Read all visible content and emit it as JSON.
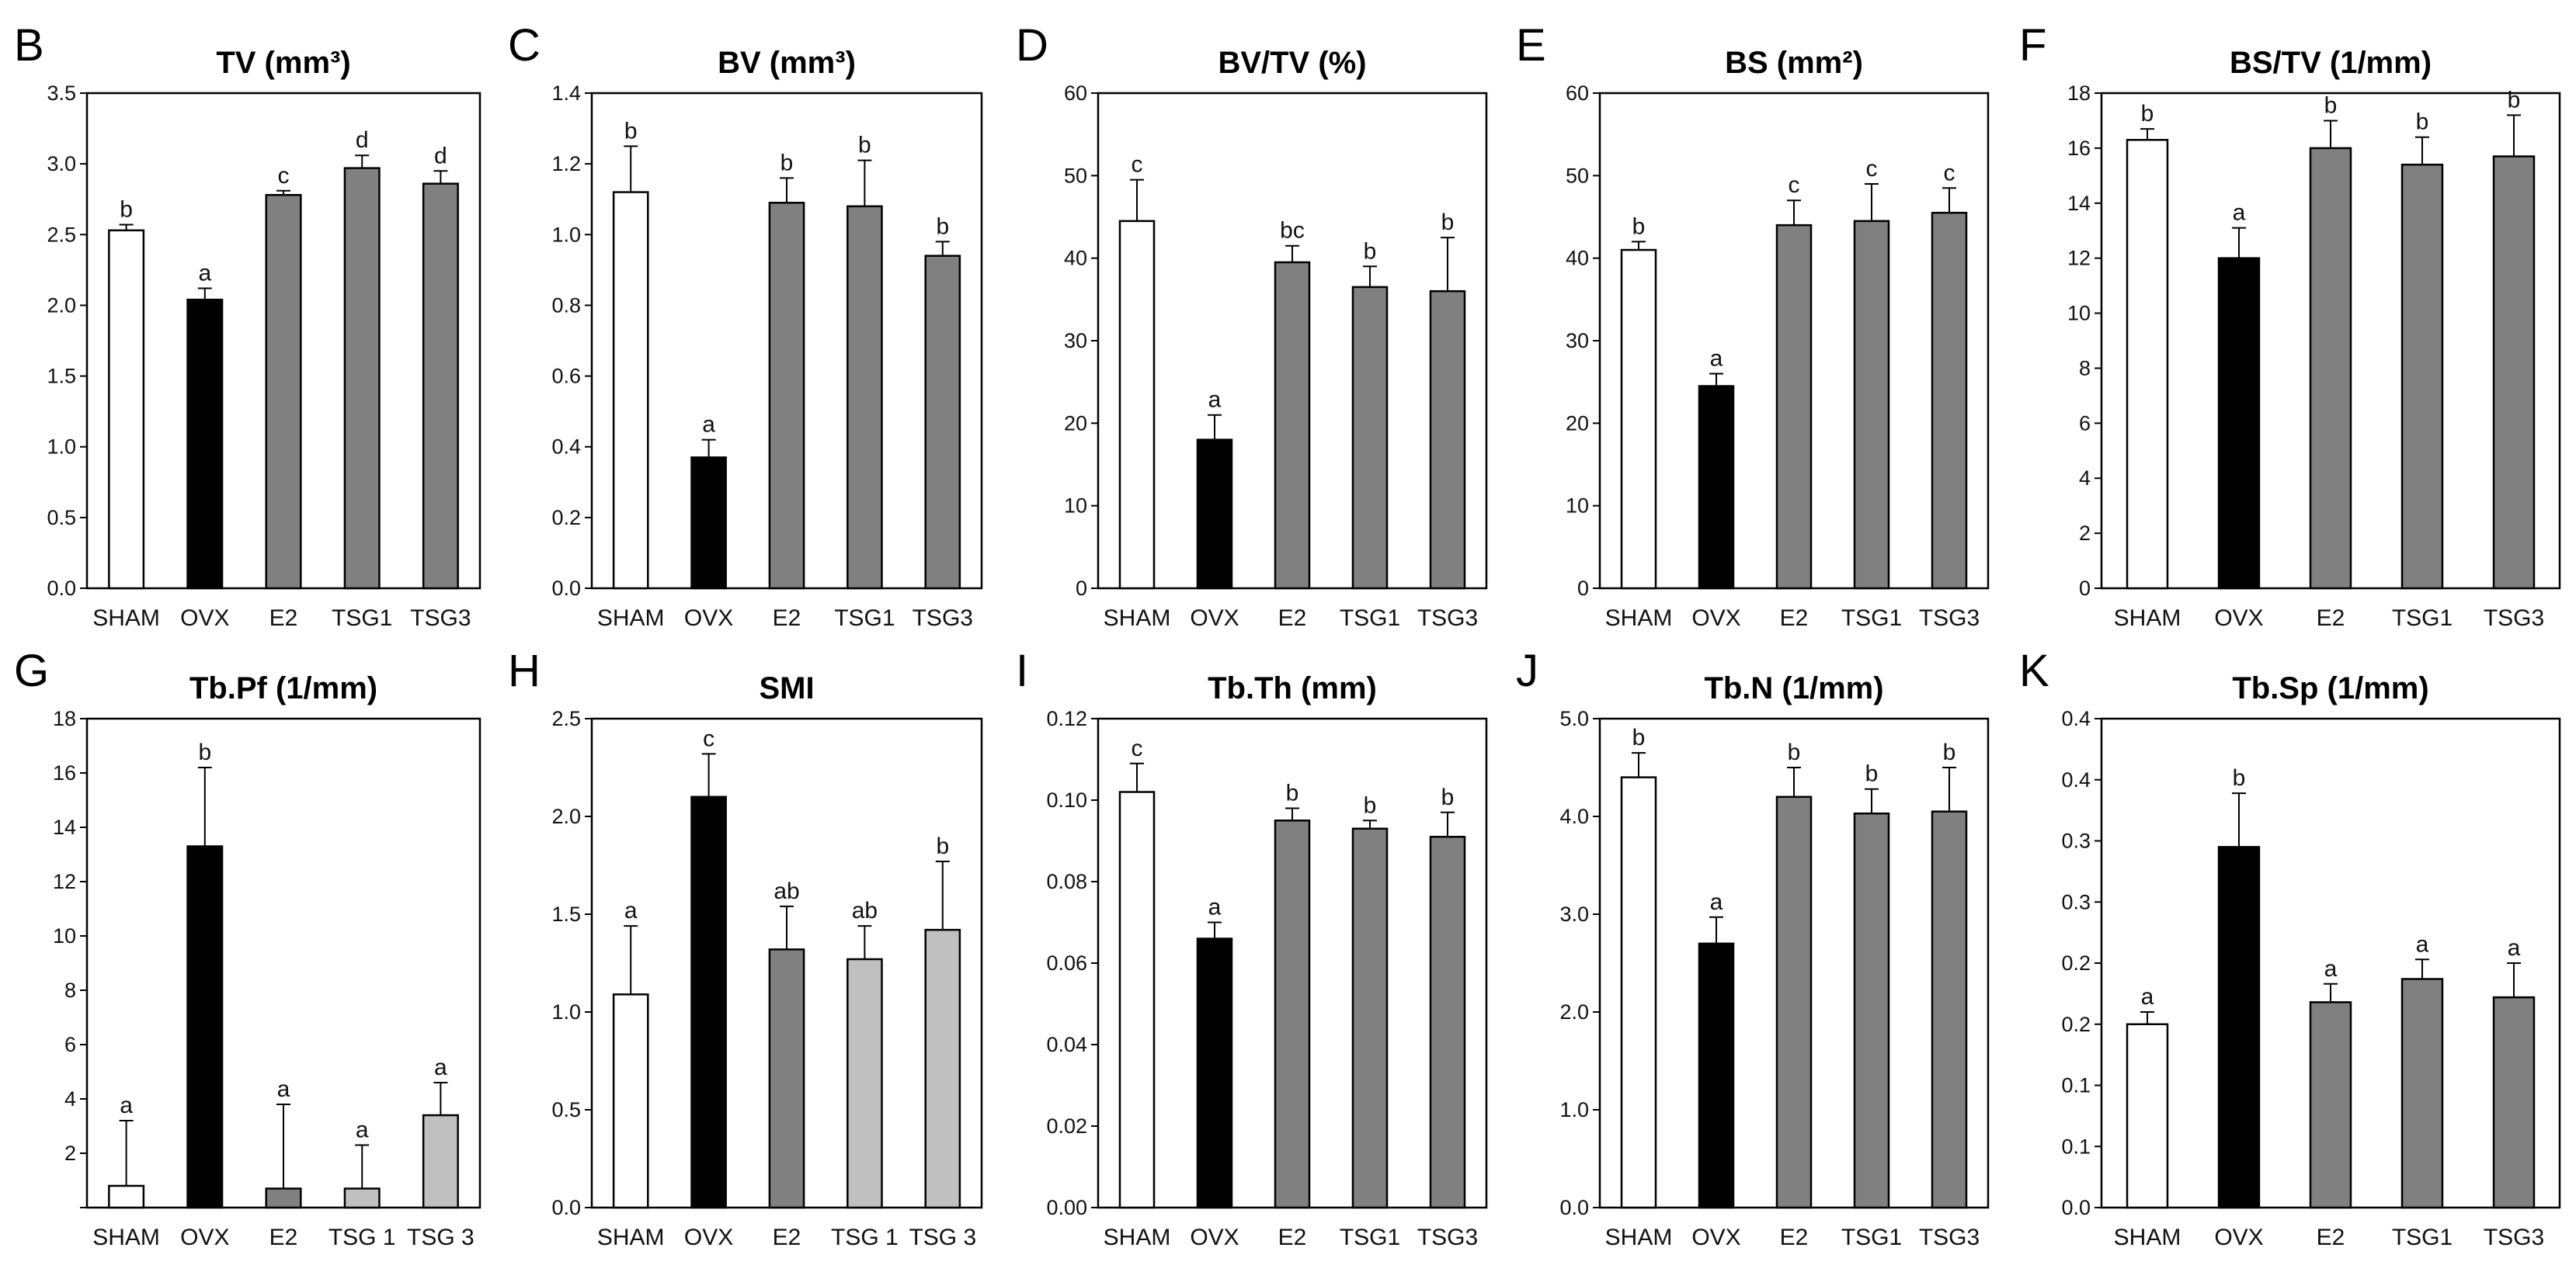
{
  "colors": {
    "SHAM": "#ffffff",
    "OVX": "#000000",
    "E2": "#808080",
    "TSG": "#808080",
    "TSG_light": "#c0c0c0"
  },
  "chart_data": [
    {
      "type": "bar",
      "letter": "B",
      "title": "TV (mm³)",
      "categories": [
        "SHAM",
        "OVX",
        "E2",
        "TSG1",
        "TSG3"
      ],
      "values": [
        2.53,
        2.04,
        2.78,
        2.97,
        2.86
      ],
      "errors": [
        0.04,
        0.08,
        0.03,
        0.09,
        0.09
      ],
      "labels": [
        "b",
        "a",
        "c",
        "d",
        "d"
      ],
      "fills": [
        "SHAM",
        "OVX",
        "E2",
        "TSG",
        "TSG"
      ],
      "ylim": [
        0,
        3.5
      ],
      "yticks": [
        "0.0",
        "0.5",
        "1.0",
        "1.5",
        "2.0",
        "2.5",
        "3.0",
        "3.5"
      ],
      "xlabel": "",
      "ylabel": ""
    },
    {
      "type": "bar",
      "letter": "C",
      "title": "BV (mm³)",
      "categories": [
        "SHAM",
        "OVX",
        "E2",
        "TSG1",
        "TSG3"
      ],
      "values": [
        1.12,
        0.37,
        1.09,
        1.08,
        0.94
      ],
      "errors": [
        0.13,
        0.05,
        0.07,
        0.13,
        0.04
      ],
      "labels": [
        "b",
        "a",
        "b",
        "b",
        "b"
      ],
      "fills": [
        "SHAM",
        "OVX",
        "E2",
        "TSG",
        "TSG"
      ],
      "ylim": [
        0,
        1.4
      ],
      "yticks": [
        "0.0",
        "0.2",
        "0.4",
        "0.6",
        "0.8",
        "1.0",
        "1.2",
        "1.4"
      ],
      "xlabel": "",
      "ylabel": ""
    },
    {
      "type": "bar",
      "letter": "D",
      "title": "BV/TV (%)",
      "categories": [
        "SHAM",
        "OVX",
        "E2",
        "TSG1",
        "TSG3"
      ],
      "values": [
        44.5,
        18,
        39.5,
        36.5,
        36
      ],
      "errors": [
        5,
        3,
        2,
        2.5,
        6.5
      ],
      "labels": [
        "c",
        "a",
        "bc",
        "b",
        "b"
      ],
      "fills": [
        "SHAM",
        "OVX",
        "E2",
        "TSG",
        "TSG"
      ],
      "ylim": [
        0,
        60
      ],
      "yticks": [
        "0",
        "10",
        "20",
        "30",
        "40",
        "50",
        "60"
      ],
      "xlabel": "",
      "ylabel": ""
    },
    {
      "type": "bar",
      "letter": "E",
      "title": "BS (mm²)",
      "categories": [
        "SHAM",
        "OVX",
        "E2",
        "TSG1",
        "TSG3"
      ],
      "values": [
        41,
        24.5,
        44,
        44.5,
        45.5
      ],
      "errors": [
        1,
        1.5,
        3,
        4.5,
        3
      ],
      "labels": [
        "b",
        "a",
        "c",
        "c",
        "c"
      ],
      "fills": [
        "SHAM",
        "OVX",
        "E2",
        "TSG",
        "TSG"
      ],
      "ylim": [
        0,
        60
      ],
      "yticks": [
        "0",
        "10",
        "20",
        "30",
        "40",
        "50",
        "60"
      ],
      "xlabel": "",
      "ylabel": ""
    },
    {
      "type": "bar",
      "letter": "F",
      "title": "BS/TV (1/mm)",
      "categories": [
        "SHAM",
        "OVX",
        "E2",
        "TSG1",
        "TSG3"
      ],
      "values": [
        16.3,
        12,
        16,
        15.4,
        15.7
      ],
      "errors": [
        0.4,
        1.1,
        1,
        1,
        1.5
      ],
      "labels": [
        "b",
        "a",
        "b",
        "b",
        "b"
      ],
      "fills": [
        "SHAM",
        "OVX",
        "E2",
        "TSG",
        "TSG"
      ],
      "ylim": [
        0,
        18
      ],
      "yticks": [
        "0",
        "2",
        "4",
        "6",
        "8",
        "10",
        "12",
        "14",
        "16",
        "18"
      ],
      "xlabel": "",
      "ylabel": ""
    },
    {
      "type": "bar",
      "letter": "G",
      "title": "Tb.Pf (1/mm)",
      "categories": [
        "SHAM",
        "OVX",
        "E2",
        "TSG 1",
        "TSG 3"
      ],
      "values": [
        0.8,
        13.3,
        0.7,
        0.7,
        3.4
      ],
      "errors": [
        2.4,
        2.9,
        3.1,
        1.6,
        1.2
      ],
      "labels": [
        "a",
        "b",
        "a",
        "a",
        "a"
      ],
      "fills": [
        "SHAM",
        "OVX",
        "E2",
        "TSG_light",
        "TSG_light"
      ],
      "ylim": [
        0,
        18
      ],
      "yticks": [
        "",
        "2",
        "4",
        "6",
        "8",
        "10",
        "12",
        "14",
        "16",
        "18"
      ],
      "xlabel": "",
      "ylabel": ""
    },
    {
      "type": "bar",
      "letter": "H",
      "title": "SMI",
      "categories": [
        "SHAM",
        "OVX",
        "E2",
        "TSG 1",
        "TSG 3"
      ],
      "values": [
        1.09,
        2.1,
        1.32,
        1.27,
        1.42
      ],
      "errors": [
        0.35,
        0.22,
        0.22,
        0.17,
        0.35
      ],
      "labels": [
        "a",
        "c",
        "ab",
        "ab",
        "b"
      ],
      "fills": [
        "SHAM",
        "OVX",
        "E2",
        "TSG_light",
        "TSG_light"
      ],
      "ylim": [
        0,
        2.5
      ],
      "yticks": [
        "0.0",
        "0.5",
        "1.0",
        "1.5",
        "2.0",
        "2.5"
      ],
      "xlabel": "",
      "ylabel": ""
    },
    {
      "type": "bar",
      "letter": "I",
      "title": "Tb.Th (mm)",
      "categories": [
        "SHAM",
        "OVX",
        "E2",
        "TSG1",
        "TSG3"
      ],
      "values": [
        0.102,
        0.066,
        0.095,
        0.093,
        0.091
      ],
      "errors": [
        0.007,
        0.004,
        0.003,
        0.002,
        0.006
      ],
      "labels": [
        "c",
        "a",
        "b",
        "b",
        "b"
      ],
      "fills": [
        "SHAM",
        "OVX",
        "E2",
        "TSG",
        "TSG"
      ],
      "ylim": [
        0,
        0.12
      ],
      "yticks": [
        "0.00",
        "0.02",
        "0.04",
        "0.06",
        "0.08",
        "0.10",
        "0.12"
      ],
      "xlabel": "",
      "ylabel": ""
    },
    {
      "type": "bar",
      "letter": "J",
      "title": "Tb.N (1/mm)",
      "categories": [
        "SHAM",
        "OVX",
        "E2",
        "TSG1",
        "TSG3"
      ],
      "values": [
        4.4,
        2.7,
        4.2,
        4.03,
        4.05
      ],
      "errors": [
        0.25,
        0.27,
        0.3,
        0.25,
        0.45
      ],
      "labels": [
        "b",
        "a",
        "b",
        "b",
        "b"
      ],
      "fills": [
        "SHAM",
        "OVX",
        "E2",
        "TSG",
        "TSG"
      ],
      "ylim": [
        0,
        5
      ],
      "yticks": [
        "0.0",
        "1.0",
        "2.0",
        "3.0",
        "4.0",
        "5.0"
      ],
      "xlabel": "",
      "ylabel": ""
    },
    {
      "type": "bar",
      "letter": "K",
      "title": "Tb.Sp (1/mm)",
      "categories": [
        "SHAM",
        "OVX",
        "E2",
        "TSG1",
        "TSG3"
      ],
      "values": [
        0.15,
        0.295,
        0.168,
        0.187,
        0.172
      ],
      "errors": [
        0.01,
        0.044,
        0.015,
        0.016,
        0.028
      ],
      "labels": [
        "a",
        "b",
        "a",
        "a",
        "a"
      ],
      "fills": [
        "SHAM",
        "OVX",
        "E2",
        "TSG",
        "TSG"
      ],
      "ylim": [
        0,
        0.4
      ],
      "yticks": [
        "0.0",
        "0.1",
        "0.1",
        "0.2",
        "0.2",
        "0.3",
        "0.3",
        "0.4",
        "0.4"
      ],
      "xlabel": "",
      "ylabel": ""
    }
  ]
}
